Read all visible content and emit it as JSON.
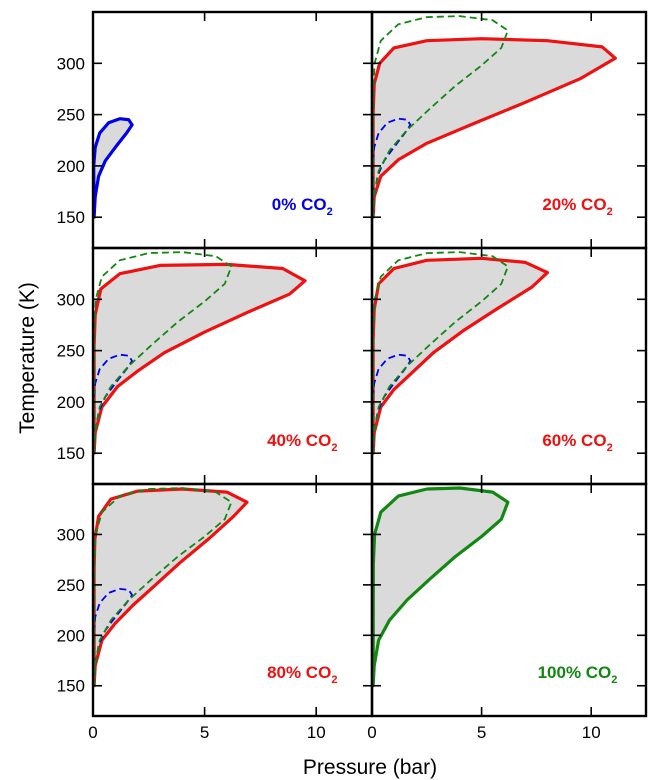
{
  "chart_data": {
    "type": "area",
    "xlabel": "Pressure (bar)",
    "ylabel": "Temperature (K)",
    "xlim": [
      0,
      12.5
    ],
    "ylim": [
      120,
      350
    ],
    "xticks": [
      "0",
      "5",
      "10"
    ],
    "yticks": [
      "150",
      "200",
      "250",
      "300"
    ],
    "colors": {
      "blue": "#0000ee",
      "red": "#ee1111",
      "green": "#118811",
      "fill": "#dadada"
    },
    "panels": [
      {
        "label_main": "0% CO",
        "label_sub": "2",
        "label_color": "#0000ee",
        "main_series": "0%",
        "ref_series": []
      },
      {
        "label_main": "20% CO",
        "label_sub": "2",
        "label_color": "#ee1111",
        "main_series": "20%",
        "ref_series": [
          "0%",
          "100%"
        ]
      },
      {
        "label_main": "40% CO",
        "label_sub": "2",
        "label_color": "#ee1111",
        "main_series": "40%",
        "ref_series": [
          "0%",
          "100%"
        ]
      },
      {
        "label_main": "60% CO",
        "label_sub": "2",
        "label_color": "#ee1111",
        "main_series": "60%",
        "ref_series": [
          "0%",
          "100%"
        ]
      },
      {
        "label_main": "80% CO",
        "label_sub": "2",
        "label_color": "#ee1111",
        "main_series": "80%",
        "ref_series": [
          "0%",
          "100%"
        ]
      },
      {
        "label_main": "100% CO",
        "label_sub": "2",
        "label_color": "#118811",
        "main_series": "100%",
        "ref_series": []
      }
    ],
    "series": {
      "0%": {
        "color": "#0000ee",
        "points": [
          [
            0.05,
            150
          ],
          [
            0.1,
            170
          ],
          [
            0.25,
            190
          ],
          [
            0.55,
            205
          ],
          [
            1.0,
            218
          ],
          [
            1.5,
            232
          ],
          [
            1.75,
            240
          ],
          [
            1.6,
            245
          ],
          [
            1.2,
            246
          ],
          [
            0.7,
            242
          ],
          [
            0.3,
            232
          ],
          [
            0.1,
            218
          ],
          [
            0.03,
            200
          ]
        ]
      },
      "20%": {
        "color": "#ee1111",
        "points": [
          [
            0.05,
            150
          ],
          [
            0.1,
            170
          ],
          [
            0.4,
            190
          ],
          [
            1.2,
            206
          ],
          [
            2.5,
            222
          ],
          [
            4.5,
            240
          ],
          [
            7,
            262
          ],
          [
            9.5,
            285
          ],
          [
            11.1,
            305
          ],
          [
            10.5,
            316
          ],
          [
            8,
            322
          ],
          [
            5,
            324
          ],
          [
            2.5,
            322
          ],
          [
            1,
            315
          ],
          [
            0.35,
            300
          ],
          [
            0.1,
            280
          ],
          [
            0.05,
            250
          ]
        ]
      },
      "40%": {
        "color": "#ee1111",
        "points": [
          [
            0.05,
            150
          ],
          [
            0.1,
            170
          ],
          [
            0.4,
            195
          ],
          [
            1.1,
            215
          ],
          [
            2,
            230
          ],
          [
            3.2,
            248
          ],
          [
            5,
            268
          ],
          [
            7,
            288
          ],
          [
            8.8,
            305
          ],
          [
            9.5,
            318
          ],
          [
            8.5,
            330
          ],
          [
            6,
            334
          ],
          [
            3,
            333
          ],
          [
            1.2,
            325
          ],
          [
            0.35,
            310
          ],
          [
            0.1,
            285
          ],
          [
            0.05,
            255
          ]
        ]
      },
      "60%": {
        "color": "#ee1111",
        "points": [
          [
            0.05,
            150
          ],
          [
            0.1,
            170
          ],
          [
            0.4,
            195
          ],
          [
            1,
            212
          ],
          [
            1.8,
            228
          ],
          [
            2.8,
            248
          ],
          [
            4.2,
            270
          ],
          [
            5.8,
            292
          ],
          [
            7.3,
            312
          ],
          [
            8,
            326
          ],
          [
            7,
            336
          ],
          [
            5,
            340
          ],
          [
            2.5,
            338
          ],
          [
            1,
            330
          ],
          [
            0.3,
            315
          ],
          [
            0.1,
            290
          ],
          [
            0.05,
            260
          ]
        ]
      },
      "80%": {
        "color": "#ee1111",
        "points": [
          [
            0.05,
            150
          ],
          [
            0.1,
            170
          ],
          [
            0.4,
            195
          ],
          [
            1,
            212
          ],
          [
            1.8,
            230
          ],
          [
            2.8,
            250
          ],
          [
            3.9,
            272
          ],
          [
            5.2,
            296
          ],
          [
            6.3,
            318
          ],
          [
            6.9,
            332
          ],
          [
            6,
            342
          ],
          [
            4,
            345
          ],
          [
            2,
            343
          ],
          [
            0.8,
            335
          ],
          [
            0.25,
            318
          ],
          [
            0.08,
            295
          ],
          [
            0.05,
            265
          ]
        ]
      },
      "100%": {
        "color": "#118811",
        "points": [
          [
            0.05,
            150
          ],
          [
            0.1,
            170
          ],
          [
            0.3,
            195
          ],
          [
            0.8,
            215
          ],
          [
            1.6,
            235
          ],
          [
            2.6,
            255
          ],
          [
            3.8,
            278
          ],
          [
            5,
            298
          ],
          [
            5.9,
            315
          ],
          [
            6.2,
            332
          ],
          [
            5.5,
            342
          ],
          [
            4,
            346
          ],
          [
            2.5,
            345
          ],
          [
            1.2,
            338
          ],
          [
            0.4,
            322
          ],
          [
            0.12,
            300
          ],
          [
            0.06,
            270
          ]
        ]
      }
    }
  }
}
